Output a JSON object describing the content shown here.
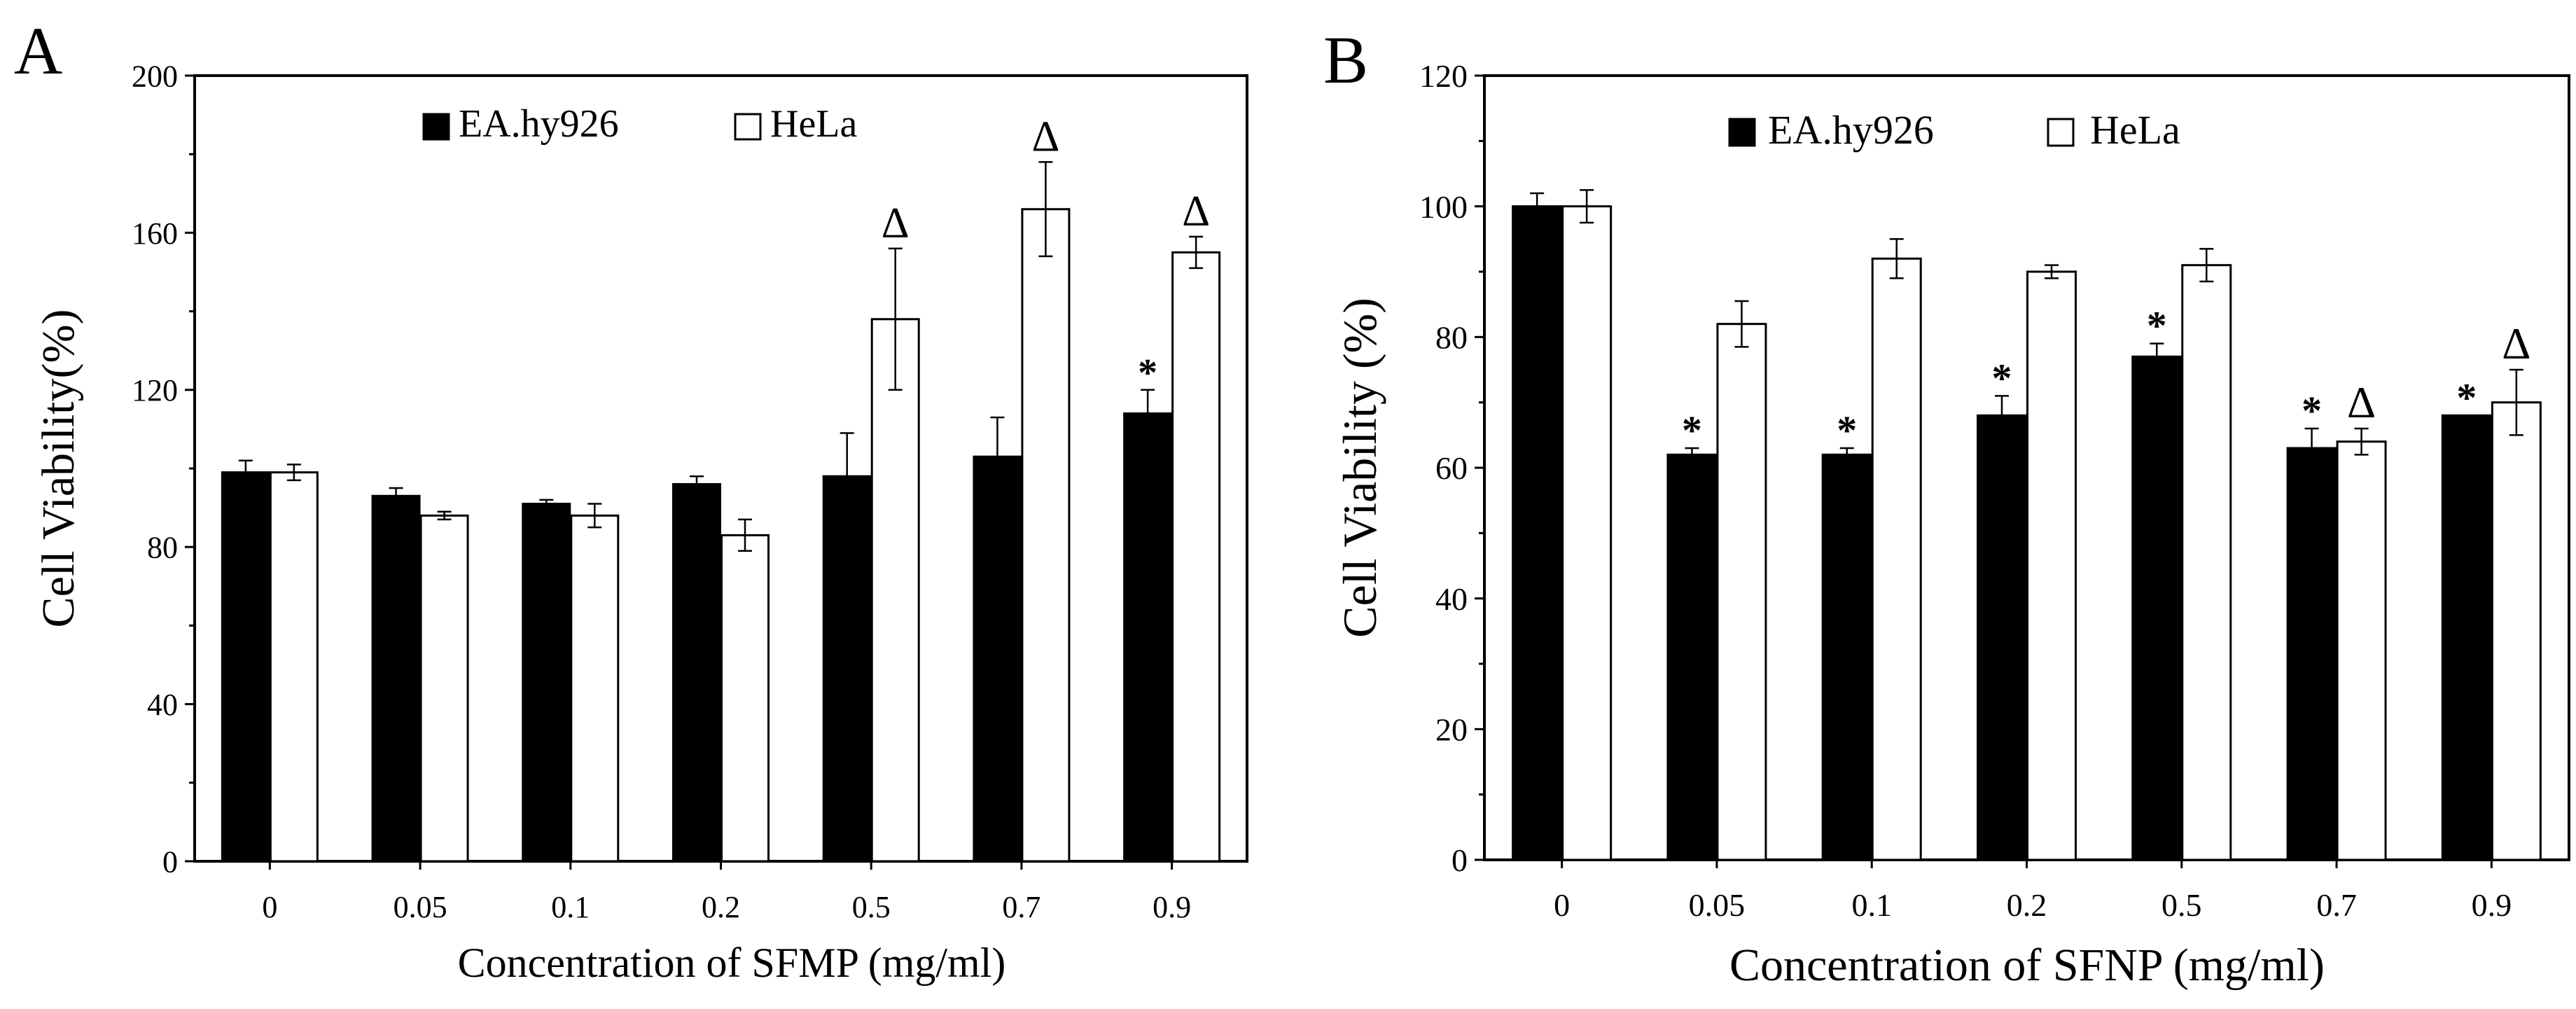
{
  "chart_data": [
    {
      "panel_label": "A",
      "type": "bar",
      "title": "",
      "xlabel": "Concentration of SFMP (mg/ml)",
      "ylabel": "Cell Viability(%)",
      "ylim": [
        0,
        200
      ],
      "yticks": [
        0,
        40,
        80,
        120,
        160,
        200
      ],
      "categories": [
        "0",
        "0.05",
        "0.1",
        "0.2",
        "0.5",
        "0.7",
        "0.9"
      ],
      "legend_position": "top-center",
      "series": [
        {
          "name": "EA.hy926",
          "fill": "#000000",
          "values": [
            99,
            93,
            91,
            96,
            98,
            103,
            114
          ],
          "errors": [
            3,
            2,
            1,
            2,
            11,
            10,
            6
          ],
          "annotations": [
            "",
            "",
            "",
            "",
            "",
            "",
            "*"
          ]
        },
        {
          "name": "HeLa",
          "fill": "#ffffff",
          "values": [
            99,
            88,
            88,
            83,
            138,
            166,
            155
          ],
          "errors": [
            2,
            1,
            3,
            4,
            18,
            12,
            4
          ],
          "annotations": [
            "",
            "",
            "",
            "",
            "Δ",
            "Δ",
            "Δ"
          ]
        }
      ]
    },
    {
      "panel_label": "B",
      "type": "bar",
      "title": "",
      "xlabel": "Concentration of SFNP (mg/ml)",
      "ylabel": "Cell Viability (%)",
      "ylim": [
        0,
        120
      ],
      "yticks": [
        0,
        20,
        40,
        60,
        80,
        100,
        120
      ],
      "categories": [
        "0",
        "0.05",
        "0.1",
        "0.2",
        "0.5",
        "0.7",
        "0.9"
      ],
      "legend_position": "top-center",
      "series": [
        {
          "name": "EA.hy926",
          "fill": "#000000",
          "values": [
            100,
            62,
            62,
            68,
            77,
            63,
            68
          ],
          "errors": [
            2,
            1,
            1,
            3,
            2,
            3,
            0
          ],
          "annotations": [
            "",
            "*",
            "*",
            "*",
            "*",
            "*",
            "*"
          ]
        },
        {
          "name": "HeLa",
          "fill": "#ffffff",
          "values": [
            100,
            82,
            92,
            90,
            91,
            64,
            70
          ],
          "errors": [
            2.5,
            3.5,
            3,
            1,
            2.5,
            2,
            5
          ],
          "annotations": [
            "",
            "",
            "",
            "",
            "",
            "Δ",
            "Δ"
          ]
        }
      ]
    }
  ]
}
